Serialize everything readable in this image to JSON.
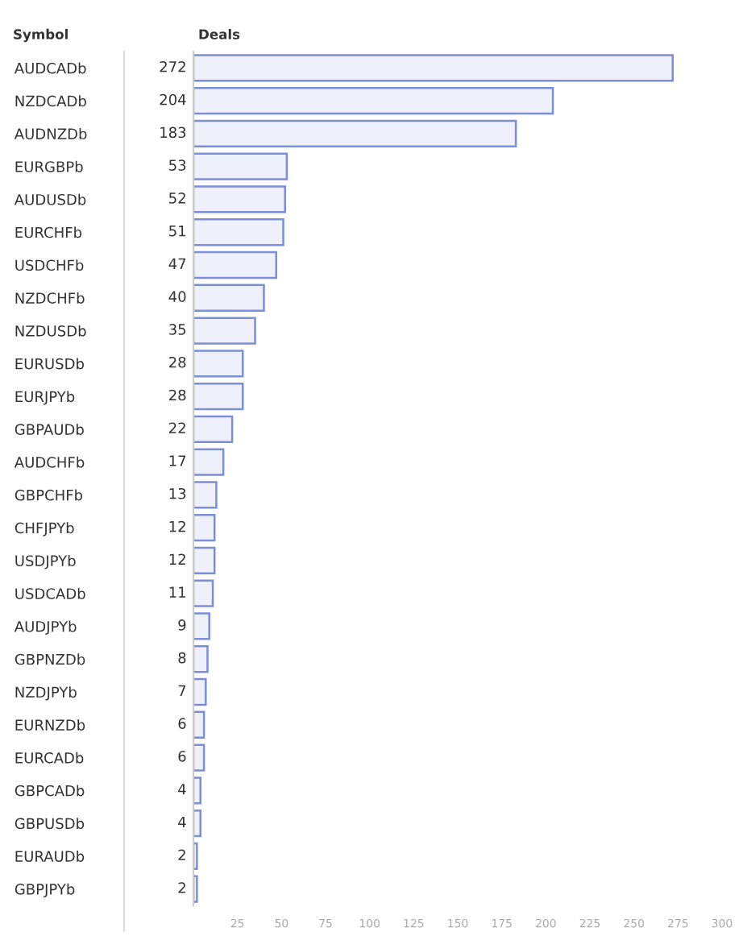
{
  "chart_data": {
    "type": "bar",
    "orientation": "horizontal",
    "ylabel": "Symbol",
    "xlabel": "Deals",
    "categories": [
      "AUDCADb",
      "NZDCADb",
      "AUDNZDb",
      "EURGBPb",
      "AUDUSDb",
      "EURCHFb",
      "USDCHFb",
      "NZDCHFb",
      "NZDUSDb",
      "EURUSDb",
      "EURJPYb",
      "GBPAUDb",
      "AUDCHFb",
      "GBPCHFb",
      "CHFJPYb",
      "USDJPYb",
      "USDCADb",
      "AUDJPYb",
      "GBPNZDb",
      "NZDJPYb",
      "EURNZDb",
      "EURCADb",
      "GBPCADb",
      "GBPUSDb",
      "EURAUDb",
      "GBPJPYb"
    ],
    "values": [
      272,
      204,
      183,
      53,
      52,
      51,
      47,
      40,
      35,
      28,
      28,
      22,
      17,
      13,
      12,
      12,
      11,
      9,
      8,
      7,
      6,
      6,
      4,
      4,
      2,
      2
    ],
    "color": "#eef1fb",
    "data_labels": true,
    "xlim": [
      0,
      300
    ],
    "xticks": [
      25,
      50,
      75,
      100,
      125,
      150,
      175,
      200,
      225,
      250,
      275,
      300
    ],
    "grid": false,
    "legend": false
  }
}
